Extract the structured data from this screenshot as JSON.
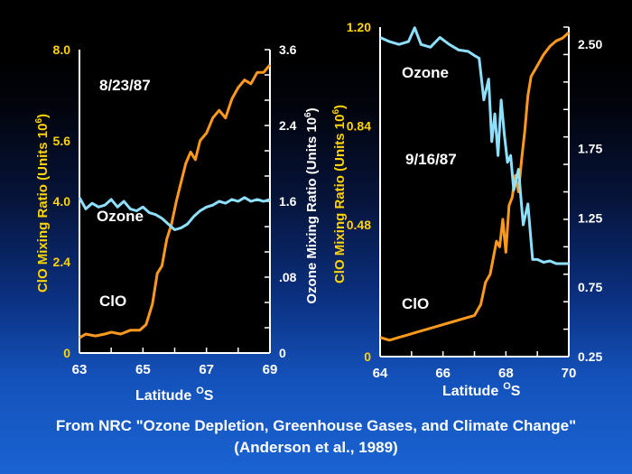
{
  "caption": {
    "line1": "From NRC \"Ozone Depletion, Greenhouse Gases, and Climate Change\"",
    "line2": "(Anderson et al., 1989)"
  },
  "colors": {
    "clo": "#ff9a1c",
    "ozone": "#8fe0ff",
    "left_label": "#ffd400",
    "background": "#000000"
  },
  "chart_data": [
    {
      "type": "line",
      "date": "8/23/87",
      "xlabel": "Latitude",
      "xlabel_unit": "O",
      "xlabel_suffix": "S",
      "xlim": [
        63,
        69
      ],
      "x_ticks": [
        "63",
        "65",
        "67",
        "69"
      ],
      "left_axis": {
        "label": "ClO Mixing Ratio (Units 10",
        "label_sup": "6",
        "label_end": ")",
        "ylim": [
          0,
          8.0
        ],
        "ticks": [
          "0",
          "2.4",
          "4.0",
          "5.6",
          "8.0"
        ],
        "tick_values": [
          0,
          2.4,
          4.0,
          5.6,
          8.0
        ]
      },
      "right_axis": {
        "label": "Ozone Mixing Ratio (Units 10",
        "label_sup": "6",
        "label_end": ")",
        "ticks": [
          "0",
          ".08",
          "1.6",
          "2.4",
          "3.6"
        ]
      },
      "series": [
        {
          "name": "ClO",
          "axis": "left",
          "x": [
            63.0,
            63.2,
            63.5,
            63.8,
            64.0,
            64.3,
            64.6,
            64.9,
            65.1,
            65.3,
            65.45,
            65.6,
            65.75,
            65.9,
            66.05,
            66.2,
            66.35,
            66.5,
            66.65,
            66.8,
            67.0,
            67.2,
            67.4,
            67.6,
            67.8,
            68.0,
            68.2,
            68.4,
            68.6,
            68.8,
            69.0
          ],
          "y": [
            0.4,
            0.5,
            0.45,
            0.5,
            0.55,
            0.5,
            0.6,
            0.6,
            0.75,
            1.3,
            2.1,
            2.3,
            3.0,
            3.4,
            4.0,
            4.5,
            5.0,
            5.3,
            5.1,
            5.6,
            5.8,
            6.2,
            6.4,
            6.2,
            6.7,
            7.0,
            7.2,
            7.1,
            7.4,
            7.4,
            7.6
          ]
        },
        {
          "name": "Ozone",
          "axis": "left",
          "x": [
            63.0,
            63.2,
            63.4,
            63.6,
            63.8,
            64.0,
            64.2,
            64.4,
            64.6,
            64.8,
            65.0,
            65.2,
            65.4,
            65.6,
            65.8,
            66.0,
            66.2,
            66.4,
            66.6,
            66.8,
            67.0,
            67.2,
            67.4,
            67.6,
            67.8,
            68.0,
            68.2,
            68.4,
            68.6,
            68.8,
            69.0
          ],
          "y": [
            4.1,
            3.8,
            3.95,
            3.85,
            3.9,
            4.05,
            3.85,
            4.0,
            3.8,
            3.75,
            3.85,
            3.7,
            3.65,
            3.55,
            3.4,
            3.25,
            3.3,
            3.4,
            3.6,
            3.75,
            3.85,
            3.9,
            4.0,
            3.95,
            4.05,
            4.0,
            4.1,
            4.0,
            4.05,
            4.0,
            4.05
          ]
        }
      ],
      "annotations": [
        "8/23/87",
        "Ozone",
        "ClO"
      ]
    },
    {
      "type": "line",
      "date": "9/16/87",
      "xlabel": "Latitude",
      "xlabel_unit": "O",
      "xlabel_suffix": "S",
      "xlim": [
        64,
        70
      ],
      "x_ticks": [
        "64",
        "66",
        "68",
        "70"
      ],
      "left_axis": {
        "label": "ClO Mixing Ratio (Units 10",
        "label_sup": "6",
        "label_end": ")",
        "ylim": [
          0,
          1.2
        ],
        "ticks": [
          "0",
          "0.48",
          "0.84",
          "1.20"
        ],
        "tick_values": [
          0,
          0.48,
          0.84,
          1.2
        ]
      },
      "right_axis": {
        "ylim": [
          0.25,
          2.625
        ],
        "ticks": [
          "0.25",
          "0.75",
          "1.25",
          "1.75",
          "2.50"
        ],
        "tick_values": [
          0.25,
          0.75,
          1.25,
          1.75,
          2.5
        ]
      },
      "series": [
        {
          "name": "ClO",
          "axis": "left",
          "x": [
            64.0,
            64.3,
            64.6,
            64.9,
            65.2,
            65.5,
            65.8,
            66.1,
            66.4,
            66.7,
            67.0,
            67.2,
            67.35,
            67.5,
            67.6,
            67.7,
            67.8,
            67.9,
            68.0,
            68.1,
            68.2,
            68.3,
            68.4,
            68.5,
            68.6,
            68.7,
            68.8,
            69.0,
            69.2,
            69.4,
            69.6,
            69.8,
            70.0
          ],
          "y": [
            0.07,
            0.06,
            0.07,
            0.08,
            0.09,
            0.1,
            0.11,
            0.12,
            0.13,
            0.14,
            0.15,
            0.19,
            0.27,
            0.3,
            0.36,
            0.42,
            0.4,
            0.5,
            0.38,
            0.55,
            0.58,
            0.66,
            0.6,
            0.72,
            0.82,
            0.95,
            1.02,
            1.06,
            1.1,
            1.13,
            1.15,
            1.16,
            1.18
          ]
        },
        {
          "name": "Ozone",
          "axis": "right",
          "x": [
            64.0,
            64.3,
            64.6,
            64.9,
            65.1,
            65.3,
            65.6,
            65.9,
            66.2,
            66.5,
            66.8,
            67.0,
            67.15,
            67.3,
            67.45,
            67.55,
            67.65,
            67.75,
            67.85,
            67.95,
            68.05,
            68.15,
            68.25,
            68.4,
            68.55,
            68.7,
            68.85,
            69.0,
            69.2,
            69.4,
            69.6,
            69.8,
            70.0
          ],
          "y": [
            2.55,
            2.52,
            2.5,
            2.52,
            2.62,
            2.5,
            2.48,
            2.55,
            2.5,
            2.46,
            2.45,
            2.42,
            2.4,
            2.1,
            2.25,
            1.8,
            2.0,
            1.7,
            2.1,
            1.85,
            1.65,
            1.7,
            1.45,
            1.6,
            1.2,
            1.35,
            0.95,
            0.95,
            0.93,
            0.94,
            0.92,
            0.92,
            0.92
          ]
        }
      ],
      "annotations": [
        "Ozone",
        "9/16/87",
        "ClO"
      ]
    }
  ]
}
